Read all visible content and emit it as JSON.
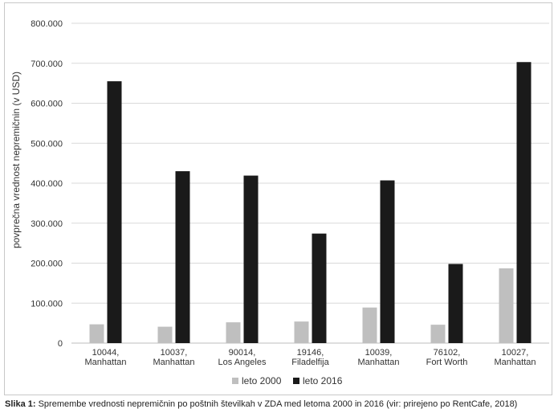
{
  "chart_data": {
    "type": "bar",
    "ylabel": "povprečna vrednost nepremičnin (v USD)",
    "ylim": [
      0,
      800000
    ],
    "yticks": [
      "0",
      "100.000",
      "200.000",
      "300.000",
      "400.000",
      "500.000",
      "600.000",
      "700.000",
      "800.000"
    ],
    "categories": [
      [
        "10044,",
        "Manhattan"
      ],
      [
        "10037,",
        "Manhattan"
      ],
      [
        "90014,",
        "Los Angeles"
      ],
      [
        "19146,",
        "Filadelfija"
      ],
      [
        "10039,",
        "Manhattan"
      ],
      [
        "76102,",
        "Fort Worth"
      ],
      [
        "10027,",
        "Manhattan"
      ]
    ],
    "series": [
      {
        "name": "leto 2000",
        "color": "#bfbfbf",
        "values": [
          47000,
          41000,
          52000,
          54000,
          89000,
          46000,
          187000
        ]
      },
      {
        "name": "leto 2016",
        "color": "#1a1a1a",
        "values": [
          655000,
          430000,
          419000,
          274000,
          407000,
          198000,
          703000
        ]
      }
    ],
    "grid": true,
    "legend_position": "bottom"
  },
  "caption": {
    "label": "Slika 1:",
    "text": " Spremembe vrednosti nepremičnin po poštnih številkah v ZDA med letoma 2000 in 2016 (vir: prirejeno po RentCafe, 2018)"
  }
}
